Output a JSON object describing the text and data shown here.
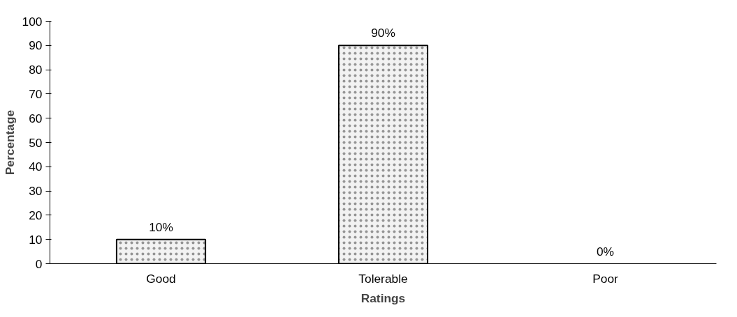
{
  "chart_data": {
    "type": "bar",
    "xlabel": "Ratings",
    "ylabel": "Percentage",
    "categories": [
      "Good",
      "Tolerable",
      "Poor"
    ],
    "values": [
      10,
      90,
      0
    ],
    "value_labels": [
      "10%",
      "90%",
      "0%"
    ],
    "color": "#f2f2f2",
    "ylim": [
      0,
      100
    ],
    "yticks": [
      0,
      10,
      20,
      30,
      40,
      50,
      60,
      70,
      80,
      90,
      100
    ],
    "grid": false
  }
}
